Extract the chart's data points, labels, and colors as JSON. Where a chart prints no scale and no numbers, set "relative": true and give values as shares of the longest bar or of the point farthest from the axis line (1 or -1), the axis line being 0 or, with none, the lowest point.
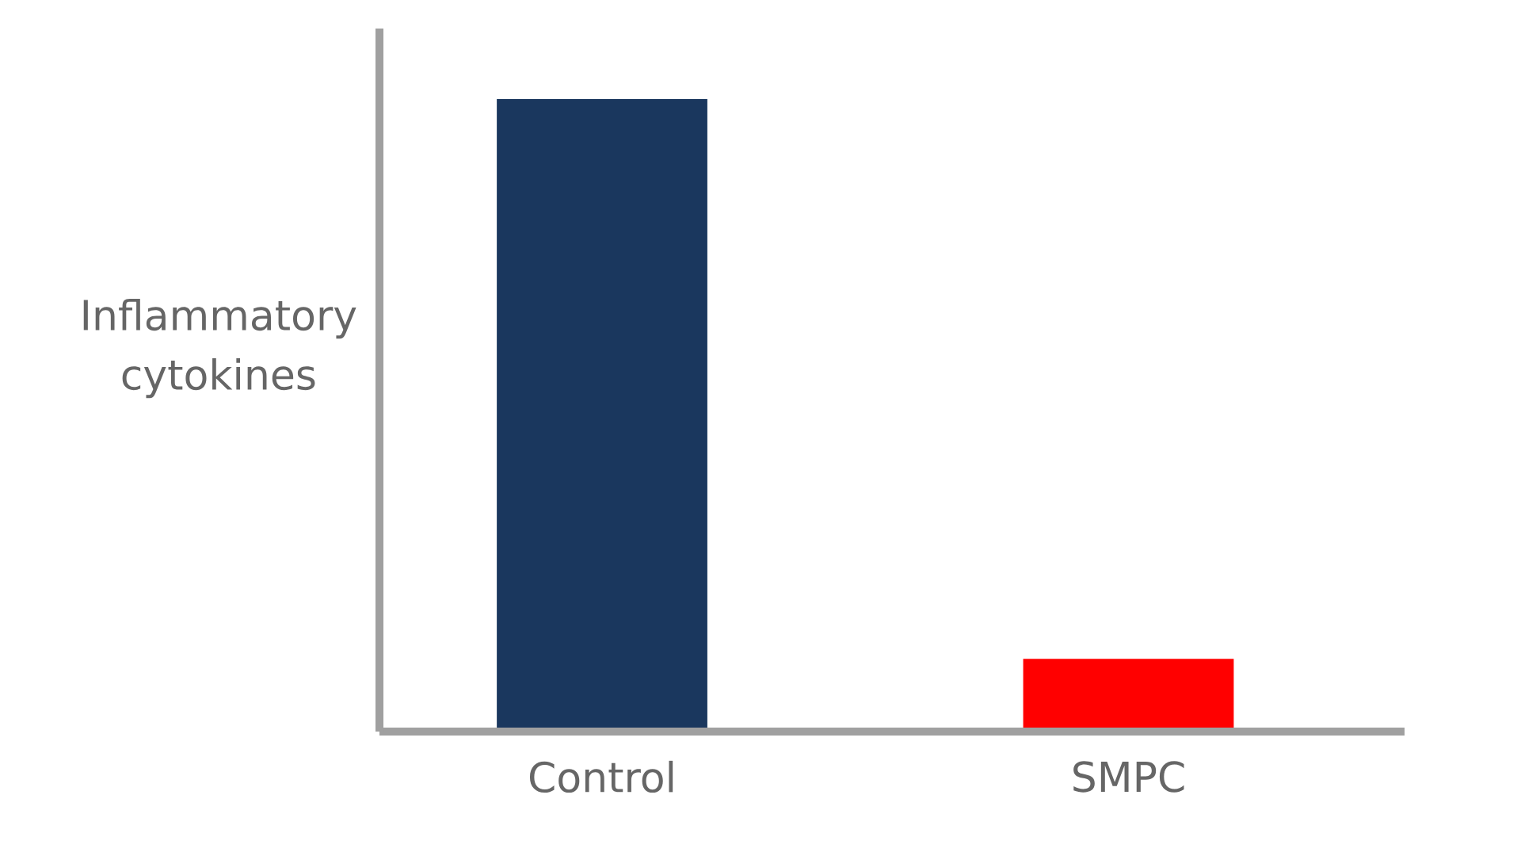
{
  "chart_data": {
    "type": "bar",
    "relative": true,
    "ylabel": "Inflammatory cytokines",
    "categories": [
      "Control",
      "SMPC"
    ],
    "values": [
      1,
      0.115
    ],
    "colors": [
      "#1a375e",
      "#ff0000"
    ]
  }
}
